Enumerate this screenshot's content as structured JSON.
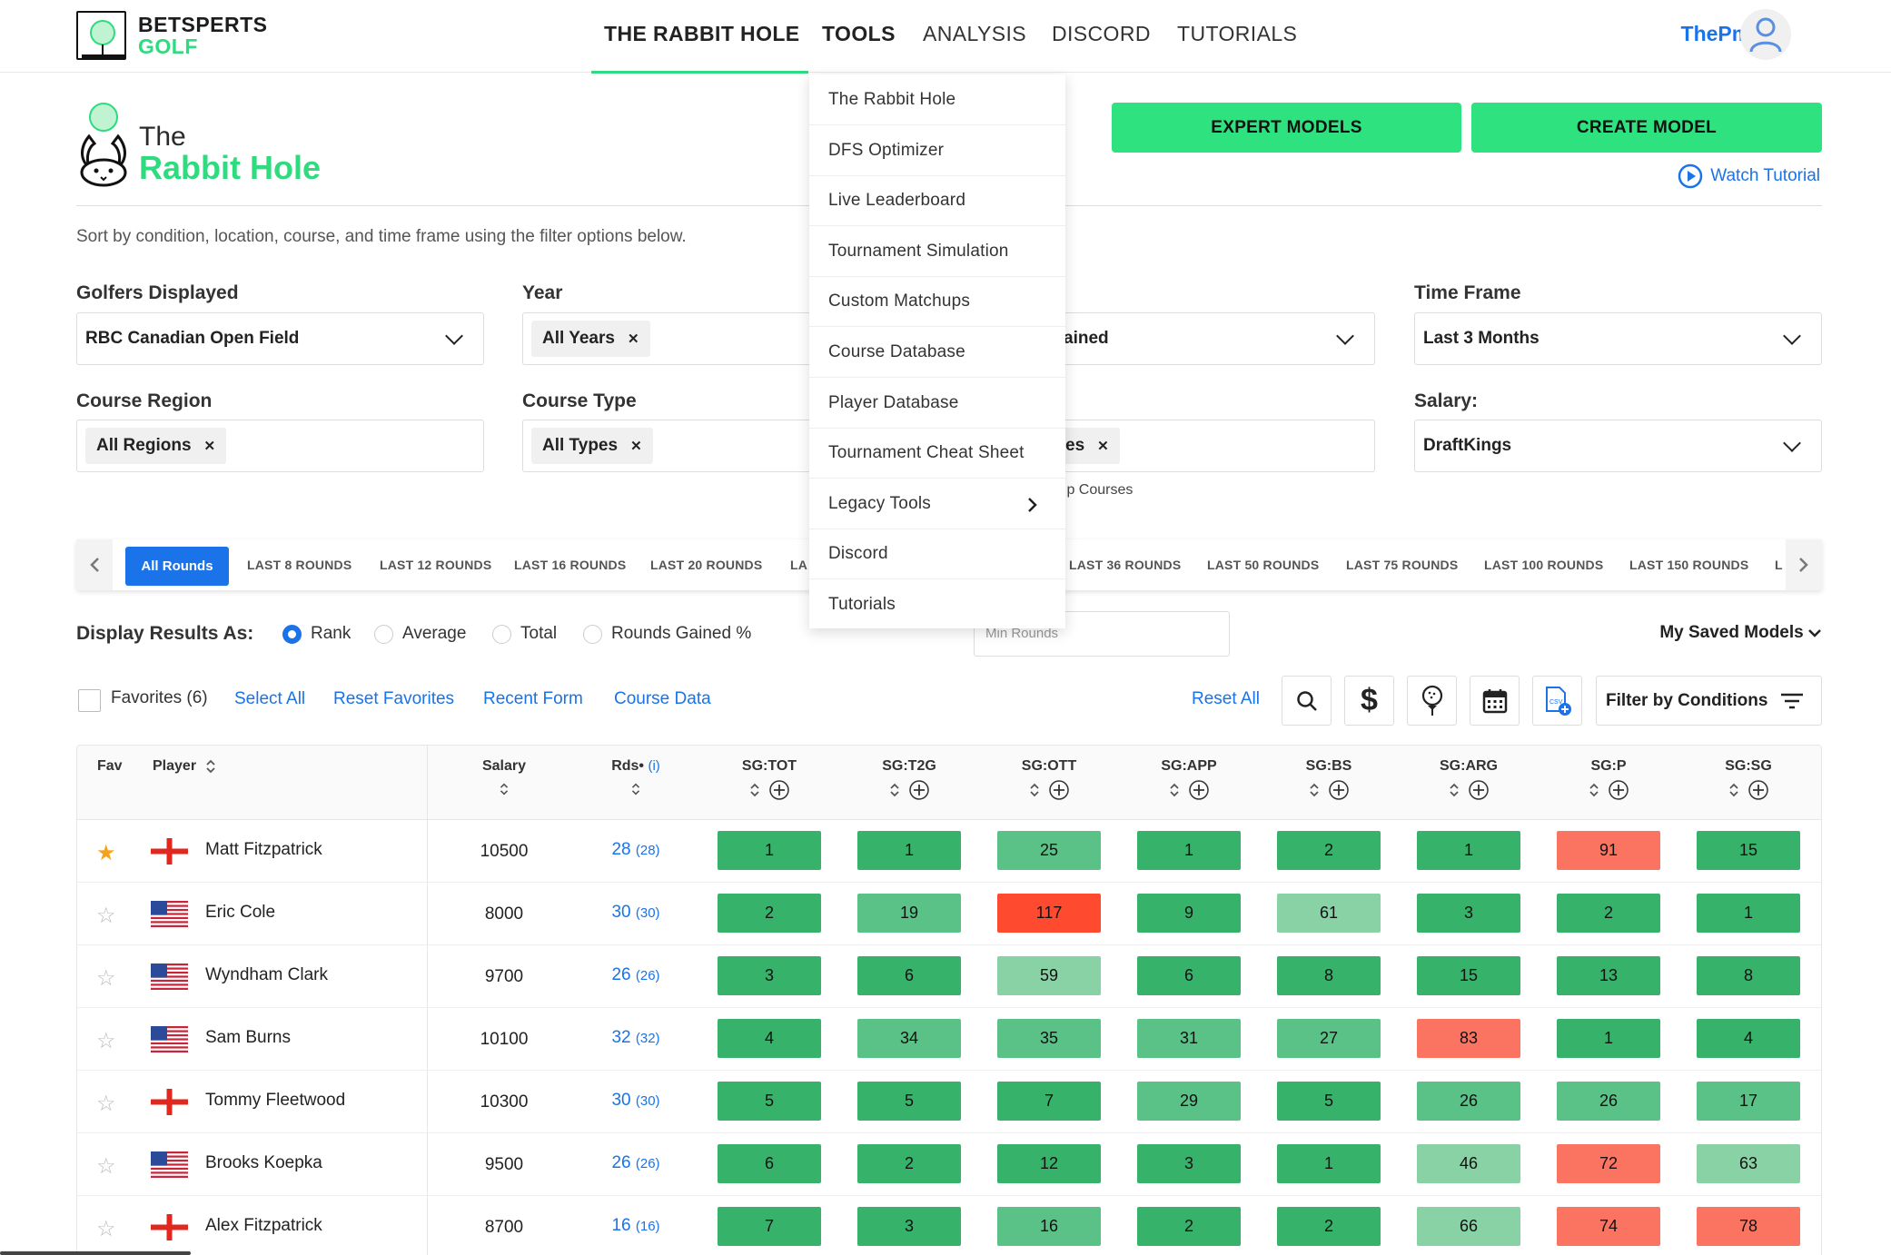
{
  "header": {
    "logo_line1": "BETSPERTS",
    "logo_line2": "GOLF",
    "nav": [
      "THE RABBIT HOLE",
      "TOOLS",
      "ANALYSIS",
      "DISCORD",
      "TUTORIALS"
    ],
    "user_name": "ThePme"
  },
  "page": {
    "title_the": "The",
    "title_main": "Rabbit Hole",
    "expert_models": "EXPERT MODELS",
    "create_model": "CREATE MODEL",
    "watch_tutorial": "Watch Tutorial",
    "subtitle": "Sort by condition, location, course, and time frame using the filter options below."
  },
  "filters": {
    "golfers_label": "Golfers Displayed",
    "golfers_value": "RBC Canadian Open Field",
    "year_label": "Year",
    "year_chip": "All Years",
    "strokes_partial": "ained",
    "timeframe_label": "Time Frame",
    "timeframe_value": "Last 3 Months",
    "region_label": "Course Region",
    "region_chip": "All Regions",
    "type_label": "Course Type",
    "type_chip": "All Types",
    "courses_partial": "es",
    "courses_note_partial": "ıp Courses",
    "salary_label": "Salary:",
    "salary_value": "DraftKings"
  },
  "rounds_tabs": {
    "active": "All Rounds",
    "left": [
      "LAST 8 ROUNDS",
      "LAST 12 ROUNDS",
      "LAST 16 ROUNDS",
      "LAST 20 ROUNDS",
      "LA"
    ],
    "right": [
      "LAST 36 ROUNDS",
      "LAST 50 ROUNDS",
      "LAST 75 ROUNDS",
      "LAST 100 ROUNDS",
      "LAST 150 ROUNDS",
      "L"
    ]
  },
  "display": {
    "label": "Display Results As:",
    "options": [
      "Rank",
      "Average",
      "Total",
      "Rounds Gained %"
    ],
    "selected": "Rank",
    "min_rounds_placeholder": "Min Rounds",
    "saved_models": "My Saved Models"
  },
  "actions": {
    "favorites": "Favorites (6)",
    "select_all": "Select All",
    "reset_favorites": "Reset Favorites",
    "recent_form": "Recent Form",
    "course_data": "Course Data",
    "reset_all": "Reset All",
    "filter_conditions": "Filter by Conditions"
  },
  "table": {
    "headers": {
      "fav": "Fav",
      "player": "Player",
      "salary": "Salary",
      "rds": "Rds•",
      "rds_info": "(i)"
    },
    "stat_headers": [
      "SG:TOT",
      "SG:T2G",
      "SG:OTT",
      "SG:APP",
      "SG:BS",
      "SG:ARG",
      "SG:P",
      "SG:SG"
    ],
    "rows": [
      {
        "fav": true,
        "flag": "england",
        "name": "Matt Fitzpatrick",
        "salary": "10500",
        "rds": "28",
        "rds2": "(28)",
        "stats": [
          1,
          1,
          25,
          1,
          2,
          1,
          91,
          15
        ]
      },
      {
        "fav": false,
        "flag": "usa",
        "name": "Eric Cole",
        "salary": "8000",
        "rds": "30",
        "rds2": "(30)",
        "stats": [
          2,
          19,
          117,
          9,
          61,
          3,
          2,
          1
        ]
      },
      {
        "fav": false,
        "flag": "usa",
        "name": "Wyndham Clark",
        "salary": "9700",
        "rds": "26",
        "rds2": "(26)",
        "stats": [
          3,
          6,
          59,
          6,
          8,
          15,
          13,
          8
        ]
      },
      {
        "fav": false,
        "flag": "usa",
        "name": "Sam Burns",
        "salary": "10100",
        "rds": "32",
        "rds2": "(32)",
        "stats": [
          4,
          34,
          35,
          31,
          27,
          83,
          1,
          4
        ]
      },
      {
        "fav": false,
        "flag": "england",
        "name": "Tommy Fleetwood",
        "salary": "10300",
        "rds": "30",
        "rds2": "(30)",
        "stats": [
          5,
          5,
          7,
          29,
          5,
          26,
          26,
          17
        ]
      },
      {
        "fav": false,
        "flag": "usa",
        "name": "Brooks Koepka",
        "salary": "9500",
        "rds": "26",
        "rds2": "(26)",
        "stats": [
          6,
          2,
          12,
          3,
          1,
          46,
          72,
          63
        ]
      },
      {
        "fav": false,
        "flag": "england",
        "name": "Alex Fitzpatrick",
        "salary": "8700",
        "rds": "16",
        "rds2": "(16)",
        "stats": [
          7,
          3,
          16,
          2,
          2,
          66,
          74,
          78
        ]
      }
    ]
  },
  "tools_menu": [
    "The Rabbit Hole",
    "DFS Optimizer",
    "Live Leaderboard",
    "Tournament Simulation",
    "Custom Matchups",
    "Course Database",
    "Player Database",
    "Tournament Cheat Sheet",
    "Legacy Tools",
    "Discord",
    "Tutorials"
  ],
  "colors": {
    "accent_green": "#2ee37f",
    "link_blue": "#1a73e8",
    "rank_dark": "#36b26b",
    "rank_mid": "#5bc287",
    "rank_light": "#89d2a6",
    "rank_red": "#fb7462",
    "rank_deep_red": "#fe4b2f"
  }
}
